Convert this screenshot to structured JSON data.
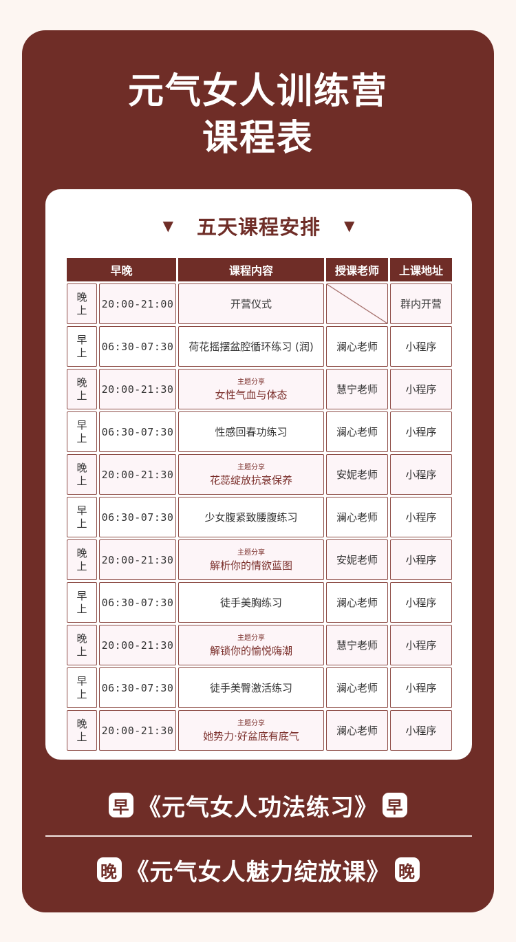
{
  "header": {
    "title_line1": "元气女人训练营",
    "title_line2": "课程表"
  },
  "schedule": {
    "section_title": "五天课程安排",
    "columns": [
      "早晚",
      "课程内容",
      "授课老师",
      "上课地址"
    ],
    "rows": [
      {
        "period": "晚上",
        "time": "20:00-21:00",
        "tag": "",
        "topic": "开营仪式",
        "teacher": "",
        "venue": "群内开营"
      },
      {
        "period": "早上",
        "time": "06:30-07:30",
        "tag": "",
        "topic": "荷花摇摆盆腔循环练习 (润)",
        "teacher": "澜心老师",
        "venue": "小程序"
      },
      {
        "period": "晚上",
        "time": "20:00-21:30",
        "tag": "主题分享",
        "topic": "女性气血与体态",
        "teacher": "慧宁老师",
        "venue": "小程序"
      },
      {
        "period": "早上",
        "time": "06:30-07:30",
        "tag": "",
        "topic": "性感回春功练习",
        "teacher": "澜心老师",
        "venue": "小程序"
      },
      {
        "period": "晚上",
        "time": "20:00-21:30",
        "tag": "主题分享",
        "topic": "花蕊绽放抗衰保养",
        "teacher": "安妮老师",
        "venue": "小程序"
      },
      {
        "period": "早上",
        "time": "06:30-07:30",
        "tag": "",
        "topic": "少女腹紧致腰腹练习",
        "teacher": "澜心老师",
        "venue": "小程序"
      },
      {
        "period": "晚上",
        "time": "20:00-21:30",
        "tag": "主题分享",
        "topic": "解析你的情欲蓝图",
        "teacher": "安妮老师",
        "venue": "小程序"
      },
      {
        "period": "早上",
        "time": "06:30-07:30",
        "tag": "",
        "topic": "徒手美胸练习",
        "teacher": "澜心老师",
        "venue": "小程序"
      },
      {
        "period": "晚上",
        "time": "20:00-21:30",
        "tag": "主题分享",
        "topic": "解锁你的愉悦嗨潮",
        "teacher": "慧宁老师",
        "venue": "小程序"
      },
      {
        "period": "早上",
        "time": "06:30-07:30",
        "tag": "",
        "topic": "徒手美臀激活练习",
        "teacher": "澜心老师",
        "venue": "小程序"
      },
      {
        "period": "晚上",
        "time": "20:00-21:30",
        "tag": "主题分享",
        "topic": "她势力·好盆底有底气",
        "teacher": "澜心老师",
        "venue": "小程序"
      }
    ]
  },
  "footer": {
    "morning_badge": "早",
    "morning_text": "《元气女人功法练习》",
    "evening_badge": "晚",
    "evening_text": "《元气女人魅力绽放课》"
  },
  "colors": {
    "brand": "#6f2d27",
    "background": "#fdf6f2",
    "evening_row": "#fdf5f8"
  }
}
